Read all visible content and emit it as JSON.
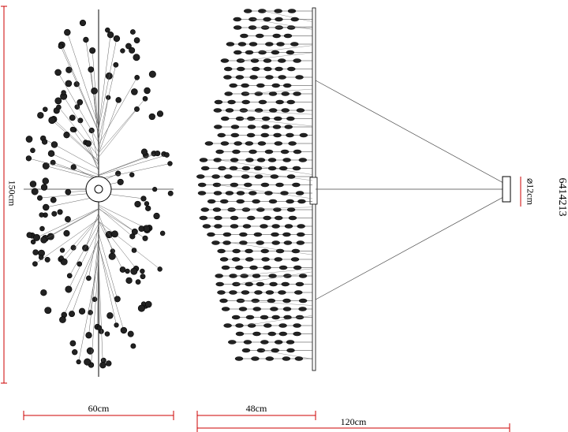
{
  "dimensions": {
    "height": "150cm",
    "width": "60cm",
    "depth": "48cm",
    "length": "120cm",
    "canopy": "⌀12cm"
  },
  "model": "6414213"
}
